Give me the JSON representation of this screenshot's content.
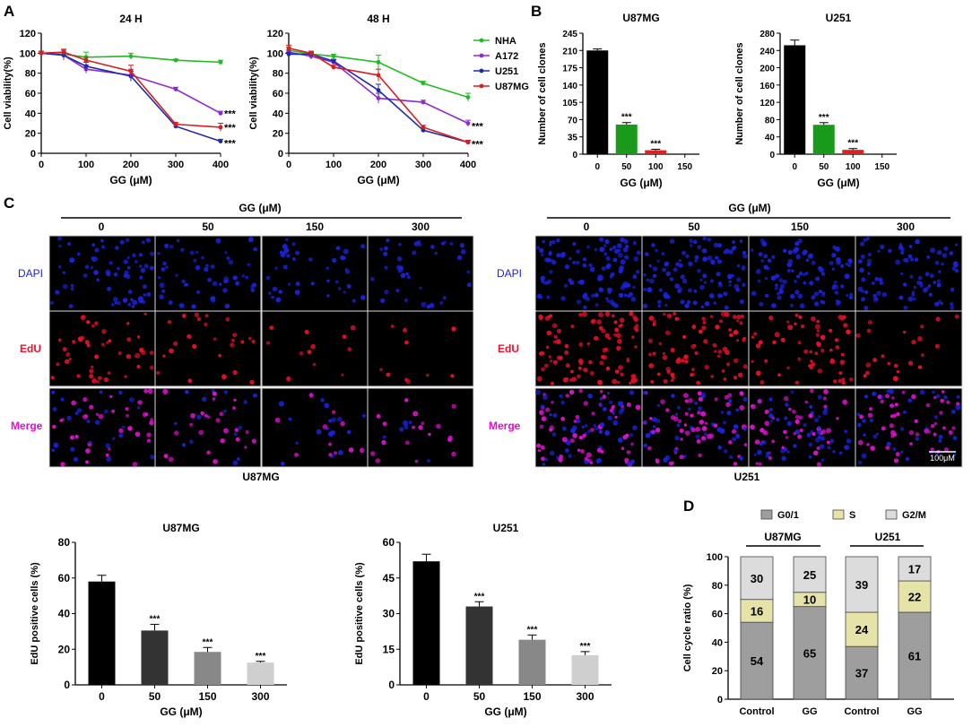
{
  "panel_letters": {
    "a": "A",
    "b": "B",
    "c": "C",
    "d": "D"
  },
  "colors": {
    "nha": "#22bb22",
    "a172": "#8e2bd0",
    "u251_line": "#1f2aa8",
    "u87mg_line": "#d42020",
    "bar_black": "#000000",
    "bar_green": "#1a9a1a",
    "bar_red": "#e02020",
    "edu_0": "#000000",
    "edu_50": "#333333",
    "edu_150": "#888888",
    "edu_300": "#cfcfcf",
    "g01": "#9e9e9e",
    "s": "#e6e3a8",
    "g2m": "#dcdcdc",
    "dapi": "#1a22d8",
    "edu": "#e8102a",
    "merge": "#e010d0"
  },
  "chart_data": [
    {
      "id": "A1",
      "type": "line",
      "title": "24 H",
      "xlabel": "GG (μM)",
      "ylabel": "Cell viability(%)",
      "xlim": [
        0,
        400
      ],
      "ylim": [
        0,
        120
      ],
      "xticks": [
        "0",
        "100",
        "200",
        "300",
        "400"
      ],
      "yticks": [
        "0",
        "20",
        "40",
        "60",
        "80",
        "100",
        "120"
      ],
      "x": [
        0,
        50,
        100,
        200,
        300,
        400
      ],
      "series": [
        {
          "name": "NHA",
          "values": [
            100,
            99,
            96,
            97,
            93,
            91
          ],
          "err": [
            2,
            2,
            5,
            3,
            1,
            2
          ]
        },
        {
          "name": "A172",
          "values": [
            100,
            98,
            84,
            78,
            64,
            40
          ],
          "err": [
            2,
            5,
            4,
            6,
            2,
            2
          ]
        },
        {
          "name": "U251",
          "values": [
            100,
            98,
            87,
            77,
            27,
            12
          ],
          "err": [
            2,
            3,
            4,
            5,
            2,
            2
          ]
        },
        {
          "name": "U87MG",
          "values": [
            100,
            101,
            93,
            82,
            29,
            26
          ],
          "err": [
            2,
            3,
            3,
            6,
            2,
            4
          ]
        }
      ],
      "annotations": [
        "***",
        "***",
        "***"
      ]
    },
    {
      "id": "A2",
      "type": "line",
      "title": "48 H",
      "xlabel": "GG (μM)",
      "ylabel": "Cell viability(%)",
      "xlim": [
        0,
        400
      ],
      "ylim": [
        0,
        120
      ],
      "xticks": [
        "0",
        "100",
        "200",
        "300",
        "400"
      ],
      "yticks": [
        "0",
        "20",
        "40",
        "60",
        "80",
        "100",
        "120"
      ],
      "x": [
        0,
        50,
        100,
        200,
        300,
        400
      ],
      "series": [
        {
          "name": "NHA",
          "values": [
            103,
            99,
            97,
            91,
            70,
            56
          ],
          "err": [
            3,
            3,
            2,
            7,
            2,
            4
          ]
        },
        {
          "name": "A172",
          "values": [
            101,
            97,
            91,
            55,
            51,
            30
          ],
          "err": [
            2,
            3,
            2,
            5,
            2,
            3
          ]
        },
        {
          "name": "U251",
          "values": [
            99,
            99,
            92,
            63,
            23,
            11
          ],
          "err": [
            2,
            2,
            2,
            6,
            2,
            2
          ]
        },
        {
          "name": "U87MG",
          "values": [
            105,
            100,
            86,
            78,
            26,
            11
          ],
          "err": [
            3,
            2,
            2,
            6,
            2,
            2
          ]
        }
      ],
      "annotations": [
        "***",
        "***"
      ],
      "legend": [
        "NHA",
        "A172",
        "U251",
        "U87MG"
      ]
    },
    {
      "id": "B1",
      "type": "bar",
      "title": "U87MG",
      "xlabel": "GG (μM)",
      "ylabel": "Number of cell clones",
      "categories": [
        "0",
        "50",
        "100",
        "150"
      ],
      "values": [
        210,
        60,
        8,
        0
      ],
      "err": [
        3,
        4,
        2,
        0
      ],
      "ylim": [
        0,
        245
      ],
      "yticks": [
        "0",
        "35",
        "70",
        "105",
        "140",
        "175",
        "210",
        "245"
      ],
      "annotations": [
        "",
        "***",
        "***",
        ""
      ]
    },
    {
      "id": "B2",
      "type": "bar",
      "title": "U251",
      "xlabel": "GG (μM)",
      "ylabel": "Number of cell clones",
      "categories": [
        "0",
        "50",
        "100",
        "150"
      ],
      "values": [
        252,
        68,
        10,
        0
      ],
      "err": [
        12,
        5,
        3,
        0
      ],
      "ylim": [
        0,
        280
      ],
      "yticks": [
        "0",
        "40",
        "80",
        "120",
        "160",
        "200",
        "240",
        "280"
      ],
      "annotations": [
        "",
        "***",
        "***",
        ""
      ]
    },
    {
      "id": "C1",
      "type": "bar",
      "title": "U87MG",
      "xlabel": "GG (μM)",
      "ylabel": "EdU positive cells (%)",
      "categories": [
        "0",
        "50",
        "150",
        "300"
      ],
      "values": [
        58,
        30.5,
        18.5,
        12.5
      ],
      "err": [
        3.5,
        3.5,
        2.5,
        0.7
      ],
      "ylim": [
        0,
        80
      ],
      "yticks": [
        "0",
        "20",
        "40",
        "60",
        "80"
      ],
      "annotations": [
        "",
        "***",
        "***",
        "***"
      ]
    },
    {
      "id": "C2",
      "type": "bar",
      "title": "U251",
      "xlabel": "GG (μM)",
      "ylabel": "EdU positive cells (%)",
      "categories": [
        "0",
        "50",
        "150",
        "300"
      ],
      "values": [
        52,
        33,
        19,
        12.5
      ],
      "err": [
        3,
        2,
        2,
        1.5
      ],
      "ylim": [
        0,
        60
      ],
      "yticks": [
        "0",
        "15",
        "30",
        "45",
        "60"
      ],
      "annotations": [
        "",
        "***",
        "***",
        "***"
      ]
    },
    {
      "id": "D",
      "type": "stacked_bar",
      "xlabel": "",
      "ylabel": "Cell cycle ratio (%)",
      "categories": [
        "Control",
        "GG",
        "Control",
        "GG"
      ],
      "groups": [
        "U87MG",
        "U251"
      ],
      "ylim": [
        0,
        100
      ],
      "yticks": [
        "0",
        "20",
        "40",
        "60",
        "80",
        "100"
      ],
      "series": [
        {
          "name": "G0/1",
          "values": [
            54,
            65,
            37,
            61
          ],
          "labels": [
            "54",
            "65",
            "37",
            "61"
          ]
        },
        {
          "name": "S",
          "values": [
            16,
            10,
            24,
            22
          ],
          "labels": [
            "16",
            "10",
            "24",
            "22"
          ]
        },
        {
          "name": "G2/M",
          "values": [
            30,
            25,
            39,
            17
          ],
          "labels": [
            "30",
            "25",
            "39",
            "17"
          ]
        }
      ],
      "legend": [
        "G0/1",
        "S",
        "G2/M"
      ]
    }
  ],
  "microscopy": {
    "left": {
      "header": "GG (μM)",
      "doses": [
        "0",
        "50",
        "150",
        "300"
      ],
      "rows": [
        "DAPI",
        "EdU",
        "Merge"
      ],
      "caption": "U87MG"
    },
    "right": {
      "header": "GG (μM)",
      "doses": [
        "0",
        "50",
        "150",
        "300"
      ],
      "rows": [
        "DAPI",
        "EdU",
        "Merge"
      ],
      "caption": "U251",
      "scale_bar": "100μM"
    }
  }
}
